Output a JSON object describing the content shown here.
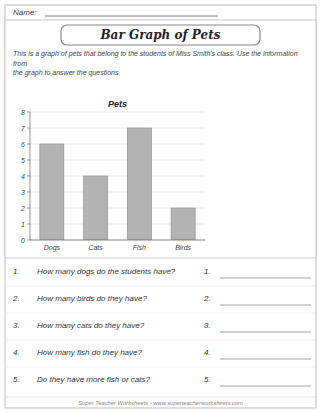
{
  "chart_data": {
    "type": "bar",
    "title": "Pets",
    "categories": [
      "Dogs",
      "Cats",
      "Fish",
      "Birds"
    ],
    "values": [
      6,
      4,
      7,
      2
    ],
    "color": "#b3b3b3",
    "ylim": [
      0,
      8
    ],
    "yticks": [
      0,
      1,
      2,
      3,
      4,
      5,
      6,
      7,
      8
    ],
    "grid": true
  },
  "title": "Bar Graph of Pets",
  "name_label": "Name:",
  "intro_text": "This is a graph of pets that belong to the students of Miss Smith's class.  Use the information from\nthe graph to answer the questions.",
  "questions": [
    "How many dogs do the students have?",
    "How many birds do they have?",
    "How many cats do they have?",
    "How many fish do they have?",
    "Do they have more fish or cats?"
  ],
  "q_numbers": [
    "1.",
    "2.",
    "3.",
    "4.",
    "5."
  ],
  "footer": "Super Teacher Worksheets - www.superteacherworksheets.com"
}
